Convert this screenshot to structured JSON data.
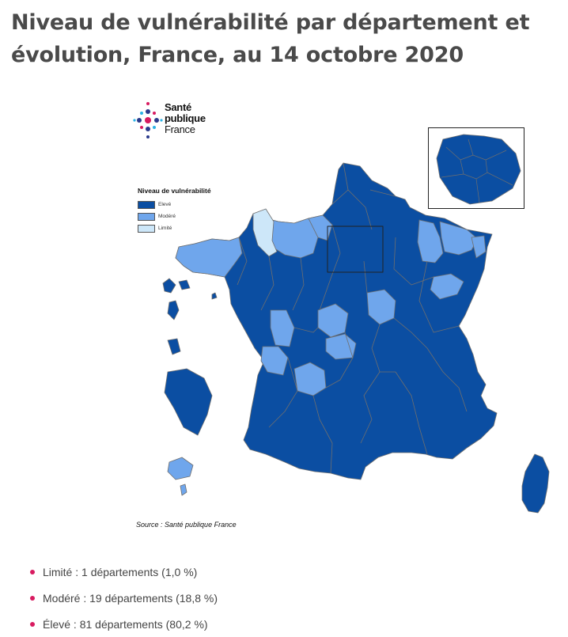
{
  "title": "Niveau de vulnérabilité par département et évolution, France, au 14 octobre 2020",
  "logo": {
    "line1": "Santé",
    "line2": "publique",
    "line3": "France"
  },
  "legend": {
    "title": "Niveau de vulnérabilité",
    "items": [
      {
        "label": "Elevé",
        "color": "#0b4ea2"
      },
      {
        "label": "Modéré",
        "color": "#6fa6ec"
      },
      {
        "label": "Limité",
        "color": "#cde7f9"
      }
    ]
  },
  "source": "Source : Santé publique France",
  "stats": [
    "Limité : 1 départements (1,0 %)",
    "Modéré : 19 départements (18,8 %)",
    "Élevé : 81 départements (80,2 %)"
  ],
  "colors": {
    "eleve": "#0b4ea2",
    "modere": "#6fa6ec",
    "limite": "#cde7f9",
    "bullet": "#d81b60",
    "border": "#7f7f7f"
  }
}
